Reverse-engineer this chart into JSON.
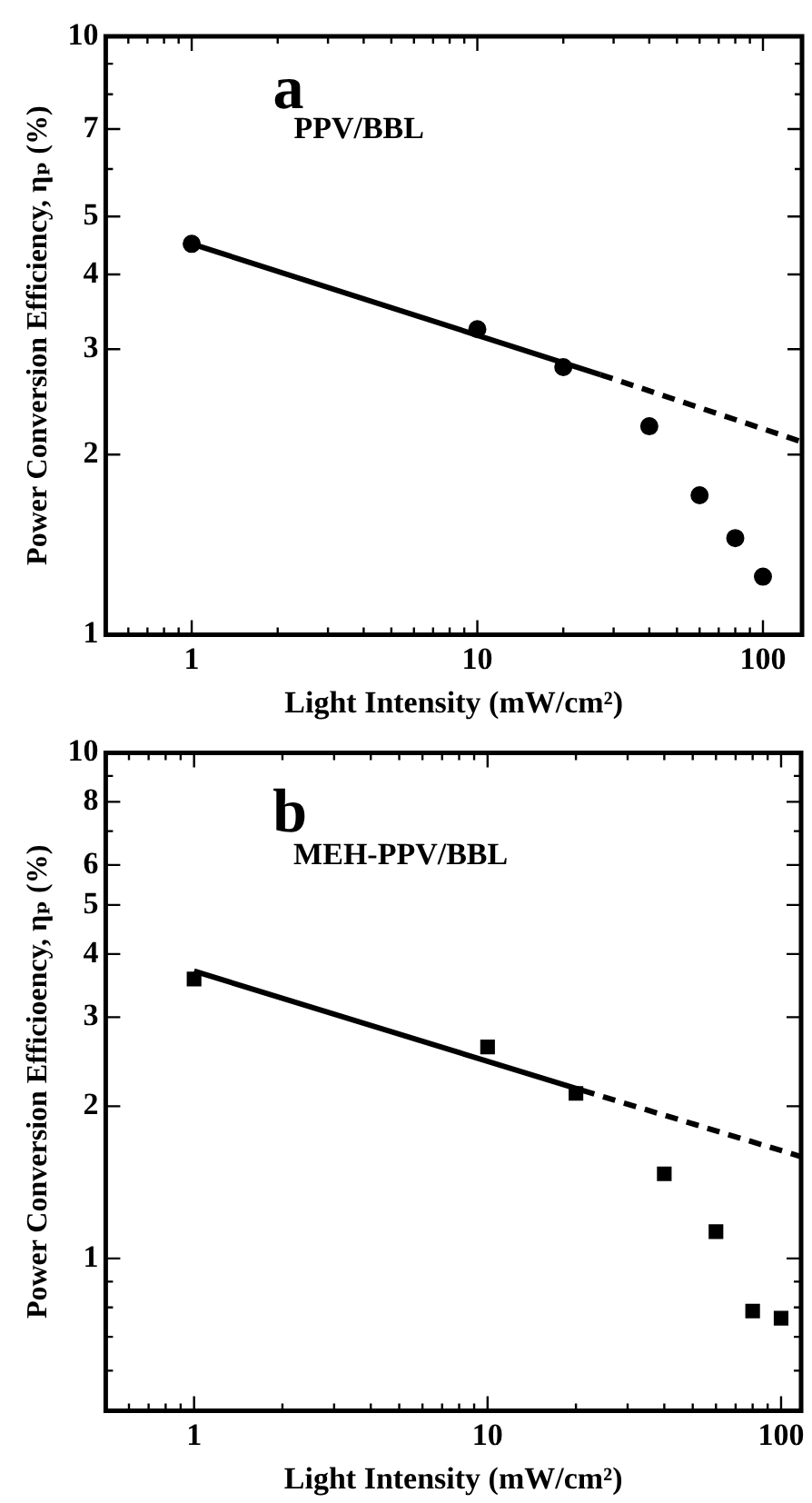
{
  "chart_data": [
    {
      "type": "scatter",
      "xlabel": "Light Intensity (mW/cm²)",
      "ylabel": "Power Conversion Efficiency, ηₚ (%)",
      "log": "xy",
      "grid": false,
      "legend": false,
      "xlim": [
        0.5,
        137
      ],
      "ylim": [
        1,
        10
      ],
      "xticks": [
        {
          "value": 0.6,
          "label": null
        },
        {
          "value": 0.7,
          "label": null
        },
        {
          "value": 0.8,
          "label": null
        },
        {
          "value": 0.9,
          "label": null
        },
        1,
        {
          "value": 2,
          "label": null
        },
        {
          "value": 3,
          "label": null
        },
        {
          "value": 4,
          "label": null
        },
        {
          "value": 5,
          "label": null
        },
        {
          "value": 6,
          "label": null
        },
        {
          "value": 7,
          "label": null
        },
        {
          "value": 8,
          "label": null
        },
        {
          "value": 9,
          "label": null
        },
        10,
        {
          "value": 20,
          "label": null
        },
        {
          "value": 30,
          "label": null
        },
        {
          "value": 40,
          "label": null
        },
        {
          "value": 50,
          "label": null
        },
        {
          "value": 60,
          "label": null
        },
        {
          "value": 70,
          "label": null
        },
        {
          "value": 80,
          "label": null
        },
        {
          "value": 90,
          "label": null
        },
        100
      ],
      "yticks": [
        1,
        2,
        3,
        4,
        5,
        {
          "value": 6,
          "label": null
        },
        7,
        {
          "value": 8,
          "label": null
        },
        {
          "value": 9,
          "label": null
        },
        10
      ],
      "annotations": [
        "a",
        "PPV/BBL"
      ],
      "series": [
        {
          "type": "scatter",
          "color": "#000000",
          "marker": "circle",
          "x": [
            1,
            10,
            20,
            40,
            60,
            80,
            100
          ],
          "values": [
            4.5,
            3.24,
            2.8,
            2.23,
            1.71,
            1.45,
            1.25
          ]
        },
        {
          "type": "line",
          "color": "#000000",
          "line_style": "solid",
          "x": [
            1,
            27
          ],
          "values": [
            4.5,
            2.72
          ]
        },
        {
          "type": "line",
          "color": "#000000",
          "line_style": "dashed",
          "x": [
            27,
            137
          ],
          "values": [
            2.72,
            2.1
          ]
        }
      ]
    },
    {
      "type": "scatter",
      "xlabel": "Light Intensity (mW/cm²)",
      "ylabel": "Power Conversion Efficioency, ηₚ (%)",
      "log": "xy",
      "grid": false,
      "legend": false,
      "xlim": [
        0.5,
        117
      ],
      "ylim": [
        0.5,
        10
      ],
      "xticks": [
        {
          "value": 0.6,
          "label": null
        },
        {
          "value": 0.7,
          "label": null
        },
        {
          "value": 0.8,
          "label": null
        },
        {
          "value": 0.9,
          "label": null
        },
        1,
        {
          "value": 2,
          "label": null
        },
        {
          "value": 3,
          "label": null
        },
        {
          "value": 4,
          "label": null
        },
        {
          "value": 5,
          "label": null
        },
        {
          "value": 6,
          "label": null
        },
        {
          "value": 7,
          "label": null
        },
        {
          "value": 8,
          "label": null
        },
        {
          "value": 9,
          "label": null
        },
        10,
        {
          "value": 20,
          "label": null
        },
        {
          "value": 30,
          "label": null
        },
        {
          "value": 40,
          "label": null
        },
        {
          "value": 50,
          "label": null
        },
        {
          "value": 60,
          "label": null
        },
        {
          "value": 70,
          "label": null
        },
        {
          "value": 80,
          "label": null
        },
        {
          "value": 90,
          "label": null
        },
        100
      ],
      "yticks": [
        {
          "value": 0.6,
          "label": null
        },
        {
          "value": 0.7,
          "label": null
        },
        {
          "value": 0.8,
          "label": null
        },
        {
          "value": 0.9,
          "label": null
        },
        1,
        2,
        3,
        4,
        5,
        6,
        {
          "value": 7,
          "label": null
        },
        8,
        {
          "value": 9,
          "label": null
        },
        10
      ],
      "annotations": [
        "b",
        "MEH-PPV/BBL"
      ],
      "series": [
        {
          "type": "scatter",
          "color": "#000000",
          "marker": "square",
          "x": [
            1,
            10,
            20,
            40,
            60,
            80,
            100
          ],
          "values": [
            3.57,
            2.62,
            2.12,
            1.47,
            1.13,
            0.787,
            0.762
          ]
        },
        {
          "type": "line",
          "color": "#000000",
          "line_style": "solid",
          "x": [
            1,
            21
          ],
          "values": [
            3.7,
            2.15
          ]
        },
        {
          "type": "line",
          "color": "#000000",
          "line_style": "dashed",
          "x": [
            21,
            117
          ],
          "values": [
            2.15,
            1.59
          ]
        }
      ]
    }
  ]
}
